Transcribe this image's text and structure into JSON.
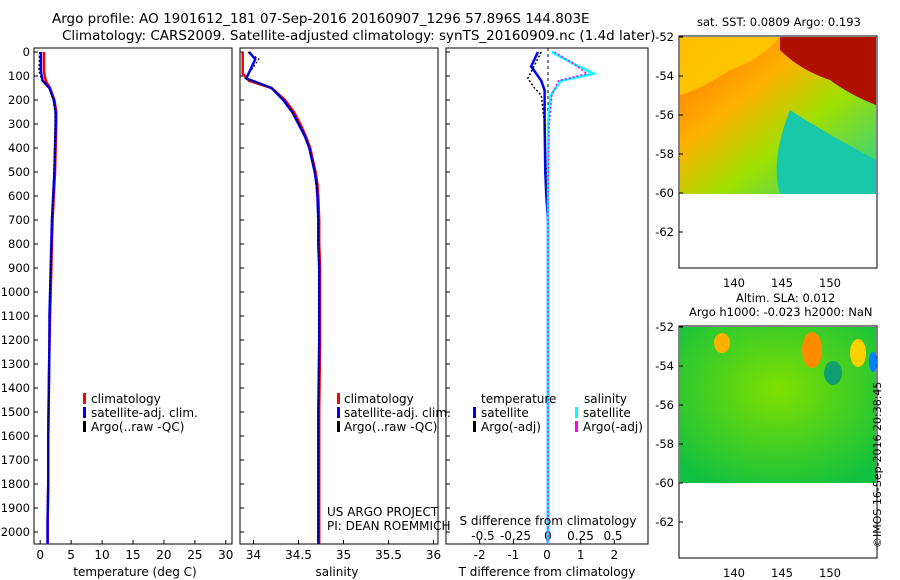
{
  "header": {
    "line1": "Argo profile: AO 1901612_181 07-Sep-2016 20160907_1296 57.896S 144.803E",
    "line2": "Climatology: CARS2009. Satellite-adjusted climatology: synTS_20160909.nc (1.4d later)"
  },
  "depth_ticks": [
    "0",
    "100",
    "200",
    "300",
    "400",
    "500",
    "600",
    "700",
    "800",
    "900",
    "1000",
    "1100",
    "1200",
    "1300",
    "1400",
    "1500",
    "1600",
    "1700",
    "1800",
    "1900",
    "2000"
  ],
  "colors": {
    "clim": "#ff0000",
    "sat": "#0000ff",
    "argo": "#000000",
    "sal_sat": "#00ffff",
    "sal_argo": "#ff00ff"
  },
  "panels": {
    "temperature": {
      "xlabel": "temperature (deg C)",
      "xticks": [
        "0",
        "5",
        "10",
        "15",
        "20",
        "25",
        "30"
      ],
      "legend": [
        "climatology",
        "satellite-adj. clim.",
        "Argo(..raw -QC)"
      ]
    },
    "salinity": {
      "xlabel": "salinity",
      "xticks": [
        "34",
        "34.5",
        "35",
        "35.5",
        "36"
      ],
      "legend": [
        "climatology",
        "satellite-adj. clim.",
        "Argo(..raw -QC)"
      ],
      "note1": "US ARGO PROJECT",
      "note2": "PI: DEAN ROEMMICH"
    },
    "difference": {
      "xlabel": "T difference from climatology",
      "xticks": [
        "-2",
        "-1",
        "0",
        "1",
        "2"
      ],
      "top_label": "S difference from climatology",
      "top_ticks": [
        "-0.5",
        "-0.25",
        "0",
        "0.25",
        "0.5"
      ],
      "legend_t_title": "temperature",
      "legend_s_title": "salinity",
      "legend_t": [
        "satellite",
        "Argo(-adj)"
      ],
      "legend_s": [
        "satellite",
        "Argo(-adj)"
      ]
    }
  },
  "maps": {
    "sst_title": "sat. SST: 0.0809 Argo: 0.193",
    "sla_title1": "Altim. SLA: 0.012",
    "sla_title2": "Argo h1000: -0.023 h2000: NaN",
    "yticks": [
      "-52",
      "-54",
      "-56",
      "-58",
      "-60",
      "-62"
    ],
    "xticks": [
      "140",
      "145",
      "150"
    ]
  },
  "credit": "©IMOS 16-Sep-2016 20:38:45",
  "chart_data": [
    {
      "type": "line",
      "xlabel": "temperature (deg C)",
      "ylabel": "",
      "xlim": [
        -1,
        31
      ],
      "ylim": [
        2060,
        -10
      ],
      "series": [
        {
          "name": "climatology",
          "x": [
            0.6,
            0.6,
            0.9,
            1.6,
            2.3,
            2.6,
            2.6,
            2.5,
            2.4,
            2.2,
            2.0,
            1.9,
            1.8,
            1.7,
            1.6,
            1.5,
            1.4,
            1.3,
            1.3,
            1.2,
            1.2
          ],
          "y": [
            0,
            80,
            120,
            150,
            200,
            250,
            300,
            400,
            500,
            600,
            700,
            800,
            900,
            1000,
            1100,
            1200,
            1400,
            1600,
            1800,
            1950,
            2050
          ]
        },
        {
          "name": "satellite-adj. clim.",
          "x": [
            0.1,
            0.1,
            0.4,
            1.5,
            2.2,
            2.5,
            2.5,
            2.4,
            2.3,
            2.1,
            1.9,
            1.8,
            1.7,
            1.6,
            1.5,
            1.5,
            1.4,
            1.3,
            1.3,
            1.2,
            1.2
          ],
          "y": [
            0,
            80,
            120,
            150,
            200,
            250,
            300,
            400,
            500,
            600,
            700,
            800,
            900,
            1000,
            1100,
            1200,
            1400,
            1600,
            1800,
            1950,
            2050
          ]
        },
        {
          "name": "Argo(..raw -QC)",
          "x": [
            -0.1,
            -0.2,
            0.3,
            1.4,
            2.1,
            2.4,
            2.4,
            2.3,
            2.2,
            2.1,
            1.9,
            1.8,
            1.7,
            1.6,
            1.5,
            1.5,
            1.4,
            1.3,
            1.3,
            1.2,
            1.2
          ],
          "y": [
            0,
            80,
            120,
            150,
            200,
            250,
            300,
            400,
            500,
            600,
            700,
            800,
            900,
            1000,
            1100,
            1200,
            1400,
            1600,
            1800,
            1950,
            2050
          ]
        }
      ]
    },
    {
      "type": "line",
      "xlabel": "salinity",
      "ylabel": "",
      "xlim": [
        33.85,
        36.05
      ],
      "ylim": [
        2060,
        -10
      ],
      "series": [
        {
          "name": "climatology",
          "x": [
            33.88,
            33.88,
            33.95,
            34.2,
            34.35,
            34.45,
            34.52,
            34.58,
            34.63,
            34.66,
            34.69,
            34.71,
            34.72,
            34.73,
            34.73,
            34.74,
            34.74,
            34.74,
            34.73,
            34.73,
            34.73
          ],
          "y": [
            0,
            90,
            120,
            150,
            200,
            250,
            300,
            350,
            400,
            450,
            500,
            550,
            600,
            700,
            800,
            900,
            1000,
            1200,
            1500,
            1800,
            2050
          ]
        },
        {
          "name": "satellite-adj. clim.",
          "x": [
            33.95,
            34.02,
            33.92,
            34.2,
            34.33,
            34.43,
            34.5,
            34.57,
            34.62,
            34.65,
            34.68,
            34.7,
            34.71,
            34.72,
            34.72,
            34.73,
            34.73,
            34.73,
            34.72,
            34.72,
            34.72
          ],
          "y": [
            0,
            30,
            110,
            150,
            200,
            250,
            300,
            350,
            400,
            450,
            500,
            550,
            600,
            700,
            800,
            900,
            1000,
            1200,
            1500,
            1800,
            2050
          ]
        },
        {
          "name": "Argo(..raw -QC)",
          "x": [
            33.94,
            34.06,
            33.91,
            34.2,
            34.33,
            34.43,
            34.5,
            34.57,
            34.62,
            34.65,
            34.68,
            34.7,
            34.71,
            34.72,
            34.72,
            34.73,
            34.73,
            34.73,
            34.72,
            34.72,
            34.72
          ],
          "y": [
            0,
            30,
            110,
            150,
            200,
            250,
            300,
            350,
            400,
            450,
            500,
            550,
            600,
            700,
            800,
            900,
            1000,
            1200,
            1500,
            1800,
            2050
          ]
        }
      ]
    },
    {
      "type": "line",
      "xlabel": "T difference from climatology",
      "ylabel": "",
      "xlim": [
        -3,
        3
      ],
      "ylim": [
        2060,
        -10
      ],
      "series": [
        {
          "name": "temperature satellite",
          "x": [
            -0.3,
            -0.5,
            -0.2,
            -0.1,
            -0.1,
            -0.08,
            -0.05,
            0,
            0,
            0
          ],
          "y": [
            0,
            60,
            120,
            160,
            300,
            500,
            600,
            700,
            1000,
            2050
          ]
        },
        {
          "name": "temperature Argo(-adj)",
          "x": [
            -0.2,
            -0.6,
            -0.4,
            -0.2,
            -0.1,
            -0.05,
            0,
            0,
            0
          ],
          "y": [
            0,
            110,
            150,
            180,
            300,
            500,
            700,
            1000,
            2050
          ]
        },
        {
          "name": "salinity satellite",
          "x": [
            0.03,
            0.2,
            0.35,
            0.1,
            0.02,
            0,
            0,
            0,
            0
          ],
          "y": [
            0,
            50,
            90,
            120,
            180,
            300,
            600,
            1000,
            2050
          ]
        },
        {
          "name": "salinity Argo(-adj)",
          "x": [
            0.05,
            0.2,
            0.3,
            0.08,
            0.03,
            0.01,
            0,
            0
          ],
          "y": [
            0,
            50,
            90,
            120,
            180,
            300,
            600,
            2050
          ]
        }
      ]
    }
  ]
}
